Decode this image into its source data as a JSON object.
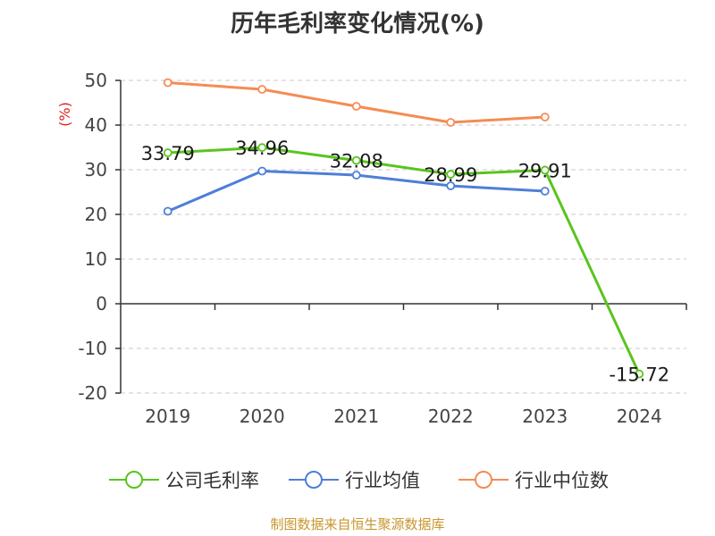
{
  "chart_data": {
    "type": "line",
    "title": "历年毛利率变化情况(%)",
    "ylabel": "(%)",
    "xlabel": "",
    "categories": [
      "2019",
      "2020",
      "2021",
      "2022",
      "2023",
      "2024"
    ],
    "ylim": [
      -20,
      50
    ],
    "yticks": [
      50,
      40,
      30,
      20,
      10,
      0,
      -10,
      -20
    ],
    "grid": true,
    "legend_position": "bottom",
    "series": [
      {
        "name": "公司毛利率",
        "color": "#5ac41e",
        "values": [
          33.79,
          34.96,
          32.08,
          28.99,
          29.91,
          -15.72
        ],
        "labels": [
          "33.79",
          "34.96",
          "32.08",
          "28.99",
          "29.91",
          "-15.72"
        ]
      },
      {
        "name": "行业均值",
        "color": "#4e7fd8",
        "values": [
          20.7,
          29.7,
          28.8,
          26.4,
          25.2,
          null
        ]
      },
      {
        "name": "行业中位数",
        "color": "#f48c54",
        "values": [
          49.5,
          48.0,
          44.2,
          40.6,
          41.8,
          null
        ]
      }
    ]
  },
  "ylabel_color": "#e02020",
  "footer": {
    "source": "制图数据来自恒生聚源数据库"
  }
}
